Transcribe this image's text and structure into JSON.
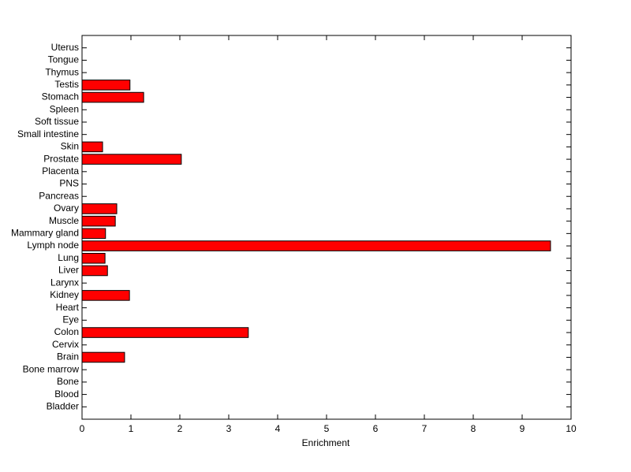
{
  "chart_data": {
    "type": "barh",
    "xlabel": "Enrichment",
    "categories": [
      "Bladder",
      "Blood",
      "Bone",
      "Bone marrow",
      "Brain",
      "Cervix",
      "Colon",
      "Eye",
      "Heart",
      "Kidney",
      "Larynx",
      "Liver",
      "Lung",
      "Lymph node",
      "Mammary gland",
      "Muscle",
      "Ovary",
      "Pancreas",
      "PNS",
      "Placenta",
      "Prostate",
      "Skin",
      "Small intestine",
      "Soft tissue",
      "Spleen",
      "Stomach",
      "Testis",
      "Thymus",
      "Tongue",
      "Uterus"
    ],
    "values": [
      0,
      0,
      0,
      0,
      0.87,
      0,
      3.4,
      0,
      0,
      0.97,
      0,
      0.52,
      0.47,
      9.58,
      0.48,
      0.68,
      0.71,
      0,
      0,
      0,
      2.03,
      0.42,
      0,
      0,
      0,
      1.26,
      0.98,
      0,
      0,
      0
    ],
    "color": "#ff0000",
    "xlim": [
      0,
      10
    ],
    "xticks": [
      0,
      1,
      2,
      3,
      4,
      5,
      6,
      7,
      8,
      9,
      10
    ]
  }
}
